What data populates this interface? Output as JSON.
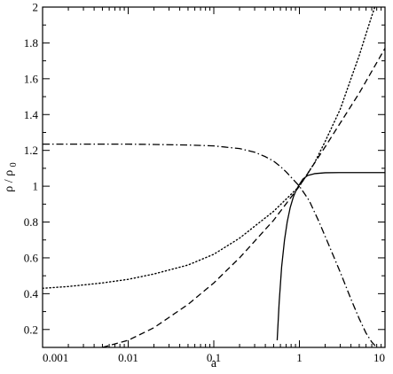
{
  "chart_data": {
    "type": "line",
    "xscale": "log",
    "xlim": [
      0.001,
      10
    ],
    "ylim": [
      0.1,
      2
    ],
    "xlabel": "a",
    "ylabel": "ρ / ρ",
    "ylabel_subscript": "0",
    "grid": false,
    "x_ticks": [
      0.001,
      0.01,
      0.1,
      1,
      10
    ],
    "x_tick_labels": [
      "0.001",
      "0.01",
      "0.1",
      "1",
      "10"
    ],
    "y_ticks": [
      0.2,
      0.4,
      0.6,
      0.8,
      1.0,
      1.2,
      1.4,
      1.6,
      1.8,
      2.0
    ],
    "y_tick_labels": [
      "0.2",
      "0.4",
      "0.6",
      "0.8",
      "1",
      "1.2",
      "1.4",
      "1.6",
      "1.8",
      "2"
    ],
    "series": [
      {
        "style": "solid",
        "x": [
          0.55,
          0.58,
          0.62,
          0.67,
          0.72,
          0.78,
          0.85,
          0.92,
          1.0,
          1.1,
          1.25,
          1.5,
          2.0,
          3.0,
          5.0,
          10.0
        ],
        "y": [
          0.14,
          0.35,
          0.55,
          0.7,
          0.8,
          0.88,
          0.94,
          0.98,
          1.01,
          1.04,
          1.06,
          1.07,
          1.075,
          1.076,
          1.076,
          1.076
        ]
      },
      {
        "style": "dashed",
        "x": [
          0.005,
          0.01,
          0.02,
          0.05,
          0.1,
          0.2,
          0.5,
          1.0,
          2.0,
          5.0,
          10.0
        ],
        "y": [
          0.1,
          0.14,
          0.21,
          0.34,
          0.46,
          0.6,
          0.81,
          1.0,
          1.22,
          1.52,
          1.77
        ]
      },
      {
        "style": "dotted",
        "x": [
          0.001,
          0.002,
          0.005,
          0.01,
          0.02,
          0.05,
          0.1,
          0.2,
          0.5,
          1.0,
          1.5,
          2.0,
          3.0,
          4.0,
          5.0,
          6.0,
          7.0,
          7.6
        ],
        "y": [
          0.43,
          0.44,
          0.46,
          0.48,
          0.51,
          0.56,
          0.62,
          0.71,
          0.86,
          1.0,
          1.13,
          1.25,
          1.43,
          1.6,
          1.73,
          1.85,
          1.95,
          2.0
        ]
      },
      {
        "style": "dashdot",
        "x": [
          0.001,
          0.01,
          0.05,
          0.1,
          0.2,
          0.3,
          0.4,
          0.5,
          0.6,
          0.7,
          0.8,
          1.0,
          1.3,
          1.7,
          2.0,
          3.0,
          4.0,
          5.0,
          6.0,
          7.0,
          8.0
        ],
        "y": [
          1.235,
          1.235,
          1.23,
          1.225,
          1.21,
          1.19,
          1.165,
          1.14,
          1.11,
          1.08,
          1.05,
          1.0,
          0.92,
          0.8,
          0.72,
          0.52,
          0.37,
          0.26,
          0.18,
          0.13,
          0.1
        ]
      }
    ]
  }
}
